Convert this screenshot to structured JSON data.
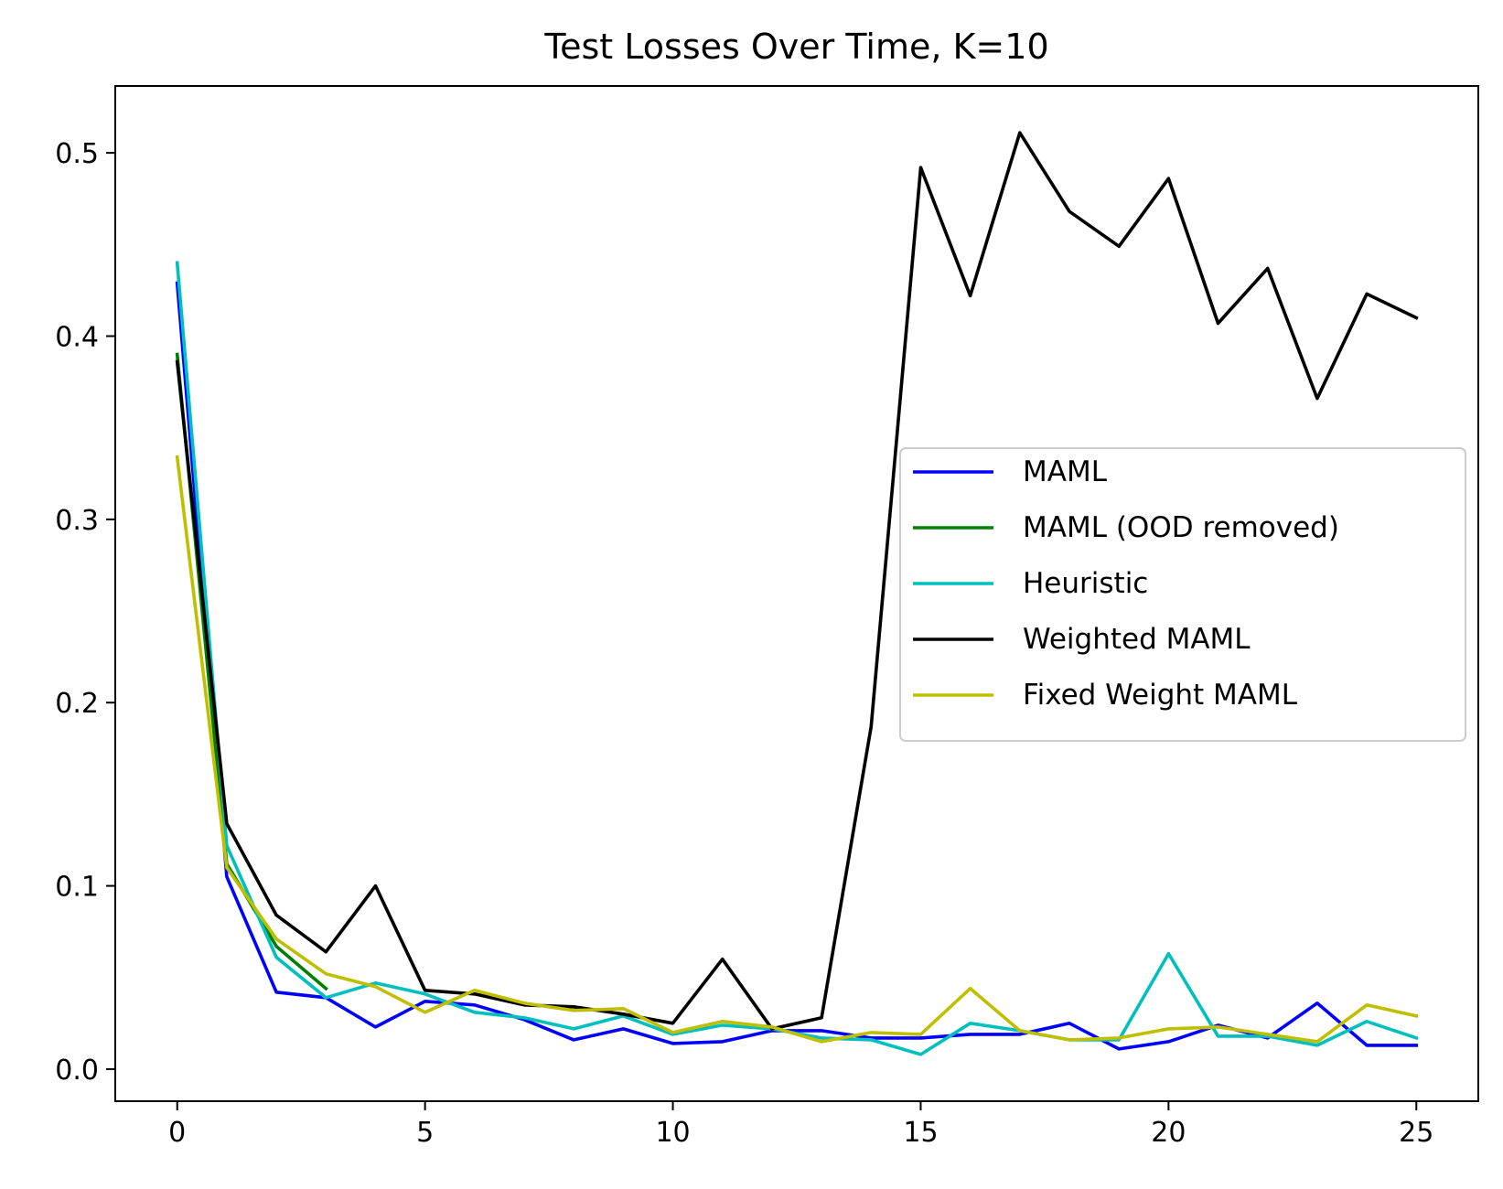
{
  "chart_data": {
    "type": "line",
    "title": "Test Losses Over Time, K=10",
    "xlabel": "",
    "ylabel": "",
    "xlim": [
      -1.25,
      26.25
    ],
    "ylim": [
      -0.0175,
      0.5365
    ],
    "x_ticks": [
      0,
      5,
      10,
      15,
      20,
      25
    ],
    "x_tick_labels": [
      "0",
      "5",
      "10",
      "15",
      "20",
      "25"
    ],
    "y_ticks": [
      0.0,
      0.1,
      0.2,
      0.3,
      0.4,
      0.5
    ],
    "y_tick_labels": [
      "0.0",
      "0.1",
      "0.2",
      "0.3",
      "0.4",
      "0.5"
    ],
    "grid": false,
    "legend_position": "center-right",
    "series": [
      {
        "name": "MAML",
        "color": "#0000ff",
        "x": [
          0,
          1,
          2,
          3,
          4,
          5,
          6,
          7,
          8,
          9,
          10,
          11,
          12,
          13,
          14,
          15,
          16,
          17,
          18,
          19,
          20,
          21,
          22,
          23,
          24,
          25
        ],
        "y": [
          0.429,
          0.105,
          0.042,
          0.039,
          0.023,
          0.037,
          0.035,
          0.027,
          0.016,
          0.022,
          0.014,
          0.015,
          0.021,
          0.021,
          0.017,
          0.017,
          0.019,
          0.019,
          0.025,
          0.011,
          0.015,
          0.024,
          0.017,
          0.036,
          0.013,
          0.013
        ]
      },
      {
        "name": "MAML (OOD removed)",
        "color": "#008000",
        "x": [
          0,
          1,
          2,
          3
        ],
        "y": [
          0.39,
          0.112,
          0.067,
          0.044
        ]
      },
      {
        "name": "Heuristic",
        "color": "#00bfbf",
        "x": [
          0,
          1,
          2,
          3,
          4,
          5,
          6,
          7,
          8,
          9,
          10,
          11,
          12,
          13,
          14,
          15,
          16,
          17,
          18,
          19,
          20,
          21,
          22,
          23,
          24,
          25
        ],
        "y": [
          0.44,
          0.122,
          0.061,
          0.039,
          0.047,
          0.041,
          0.031,
          0.028,
          0.022,
          0.029,
          0.019,
          0.024,
          0.022,
          0.017,
          0.016,
          0.008,
          0.025,
          0.021,
          0.016,
          0.016,
          0.063,
          0.018,
          0.018,
          0.013,
          0.026,
          0.017
        ]
      },
      {
        "name": "Weighted MAML",
        "color": "#000000",
        "x": [
          0,
          1,
          2,
          3,
          4,
          5,
          6,
          7,
          8,
          9,
          10,
          11,
          12,
          13,
          14,
          15,
          16,
          17,
          18,
          19,
          20,
          21,
          22,
          23,
          24,
          25
        ],
        "y": [
          0.386,
          0.134,
          0.084,
          0.064,
          0.1,
          0.043,
          0.041,
          0.035,
          0.034,
          0.03,
          0.025,
          0.06,
          0.022,
          0.028,
          0.187,
          0.492,
          0.422,
          0.511,
          0.468,
          0.449,
          0.486,
          0.407,
          0.437,
          0.366,
          0.423,
          0.41
        ]
      },
      {
        "name": "Fixed Weight MAML",
        "color": "#bfbf00",
        "x": [
          0,
          1,
          2,
          3,
          4,
          5,
          6,
          7,
          8,
          9,
          10,
          11,
          12,
          13,
          14,
          15,
          16,
          17,
          18,
          19,
          20,
          21,
          22,
          23,
          24,
          25
        ],
        "y": [
          0.334,
          0.11,
          0.071,
          0.052,
          0.045,
          0.031,
          0.043,
          0.036,
          0.032,
          0.033,
          0.02,
          0.026,
          0.023,
          0.015,
          0.02,
          0.019,
          0.044,
          0.021,
          0.016,
          0.017,
          0.022,
          0.023,
          0.019,
          0.015,
          0.035,
          0.029
        ]
      }
    ]
  }
}
